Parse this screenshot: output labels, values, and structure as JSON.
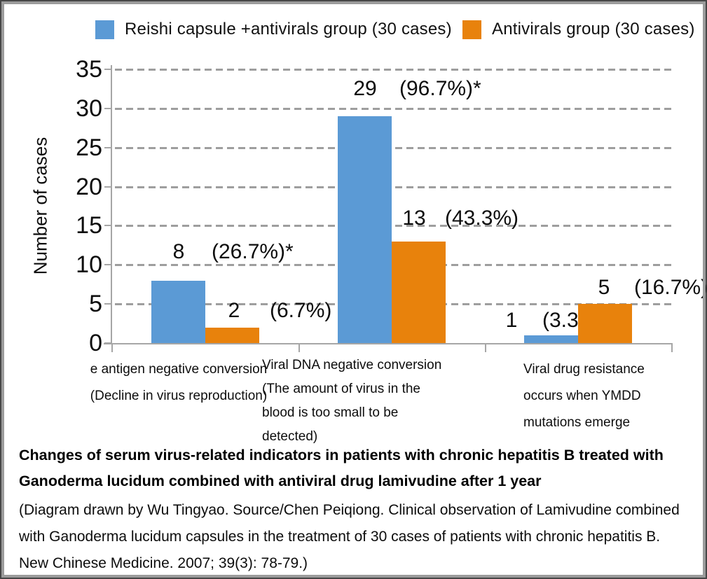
{
  "legend": {
    "items": [
      {
        "label": "Reishi capsule +antivirals group (30 cases)",
        "color": "#5B9AD5"
      },
      {
        "label": "Antivirals group (30 cases)",
        "color": "#E8820C"
      }
    ]
  },
  "chart_data": {
    "type": "bar",
    "ylabel": "Number of cases",
    "ylim": [
      0,
      35
    ],
    "yticks": [
      0,
      5,
      10,
      15,
      20,
      25,
      30,
      35
    ],
    "grid": "horizontal-dashed",
    "legend_position": "top",
    "categories": [
      {
        "lines": [
          "e antigen negative conversion",
          "(Decline in virus reproduction)"
        ]
      },
      {
        "lines": [
          "Viral DNA negative conversion",
          "(The amount of virus in the",
          "blood is too small to be",
          "detected)"
        ]
      },
      {
        "lines": [
          "Viral drug resistance",
          "occurs when YMDD",
          "mutations emerge"
        ]
      }
    ],
    "series": [
      {
        "name": "Reishi capsule +antivirals group (30 cases)",
        "color": "#5B9AD5",
        "values": [
          8,
          29,
          1
        ],
        "value_labels": [
          "8",
          "29",
          "1"
        ],
        "pct_labels": [
          "(26.7%)*",
          "(96.7%)*",
          "(3.3%)*"
        ]
      },
      {
        "name": "Antivirals group (30 cases)",
        "color": "#E8820C",
        "values": [
          2,
          13,
          5
        ],
        "value_labels": [
          "2",
          "13",
          "5"
        ],
        "pct_labels": [
          "(6.7%)",
          "(43.3%)",
          "(16.7%)"
        ]
      }
    ]
  },
  "caption": {
    "title": "Changes of serum virus-related indicators in patients with chronic hepatitis B treated with Ganoderma lucidum combined with antiviral drug lamivudine after 1 year",
    "source": "(Diagram drawn by Wu Tingyao. Source/Chen Peiqiong. Clinical observation of Lamivudine combined with Ganoderma lucidum capsules in the treatment of 30 cases of patients with chronic hepatitis B. New Chinese Medicine. 2007; 39(3): 78-79.)"
  }
}
